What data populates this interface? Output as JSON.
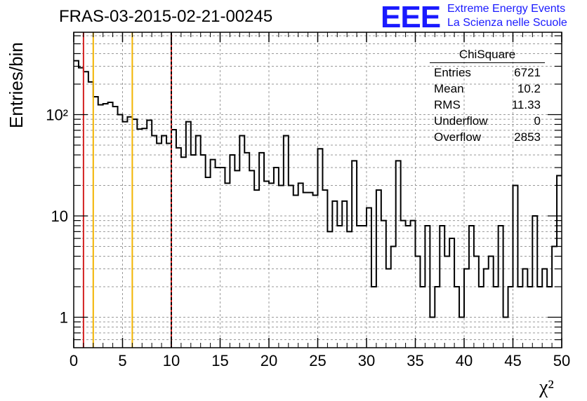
{
  "header": {
    "title": "FRAS-03-2015-02-21-00245",
    "logo_text": "EEE",
    "logo_line1": "Extreme Energy Events",
    "logo_line2": "La Scienza nelle Scuole",
    "logo_color": "#1a1aff"
  },
  "stats": {
    "name": "ChiSquare",
    "rows": [
      {
        "label": "Entries",
        "value": "6721"
      },
      {
        "label": "Mean",
        "value": "10.2"
      },
      {
        "label": "RMS",
        "value": "11.33"
      },
      {
        "label": "Underflow",
        "value": "0"
      },
      {
        "label": "Overflow",
        "value": "2853"
      }
    ]
  },
  "chart_data": {
    "type": "histogram",
    "ylabel": "Entries/bin",
    "xlabel": "χ²",
    "xlim": [
      0,
      50
    ],
    "ylim": [
      0.5,
      650
    ],
    "yscale": "log",
    "grid": true,
    "bin_width": 0.5,
    "x_ticks": [
      0,
      5,
      10,
      15,
      20,
      25,
      30,
      35,
      40,
      45,
      50
    ],
    "y_ticks": [
      {
        "value": 1,
        "label": "1"
      },
      {
        "value": 10,
        "label": "10"
      },
      {
        "value": 100,
        "label": "10²"
      }
    ],
    "values": [
      340,
      290,
      265,
      210,
      150,
      125,
      128,
      132,
      120,
      100,
      85,
      95,
      90,
      72,
      73,
      88,
      62,
      52,
      62,
      52,
      71,
      47,
      38,
      85,
      40,
      62,
      40,
      24,
      36,
      30,
      30,
      21,
      40,
      28,
      62,
      42,
      28,
      18,
      42,
      22,
      21,
      30,
      20,
      62,
      20,
      16,
      21,
      17,
      17,
      16,
      46,
      18,
      7,
      14,
      8,
      14,
      7,
      35,
      8,
      8,
      12,
      2,
      18,
      9,
      3,
      5,
      35,
      9,
      8,
      9,
      4,
      2,
      8,
      1,
      2,
      8,
      4,
      6,
      2,
      1,
      3,
      8,
      4,
      2,
      3,
      4,
      2,
      8,
      1,
      2,
      20,
      2,
      3,
      2,
      10,
      2,
      3,
      2,
      5,
      25
    ],
    "vertical_lines": [
      {
        "x": 1,
        "color": "#d42020"
      },
      {
        "x": 2,
        "color": "#f2b400"
      },
      {
        "x": 6,
        "color": "#f2b400"
      },
      {
        "x": 10,
        "color": "#d42020"
      },
      {
        "x": 10,
        "color": "#000000",
        "style": "dashed"
      }
    ]
  }
}
